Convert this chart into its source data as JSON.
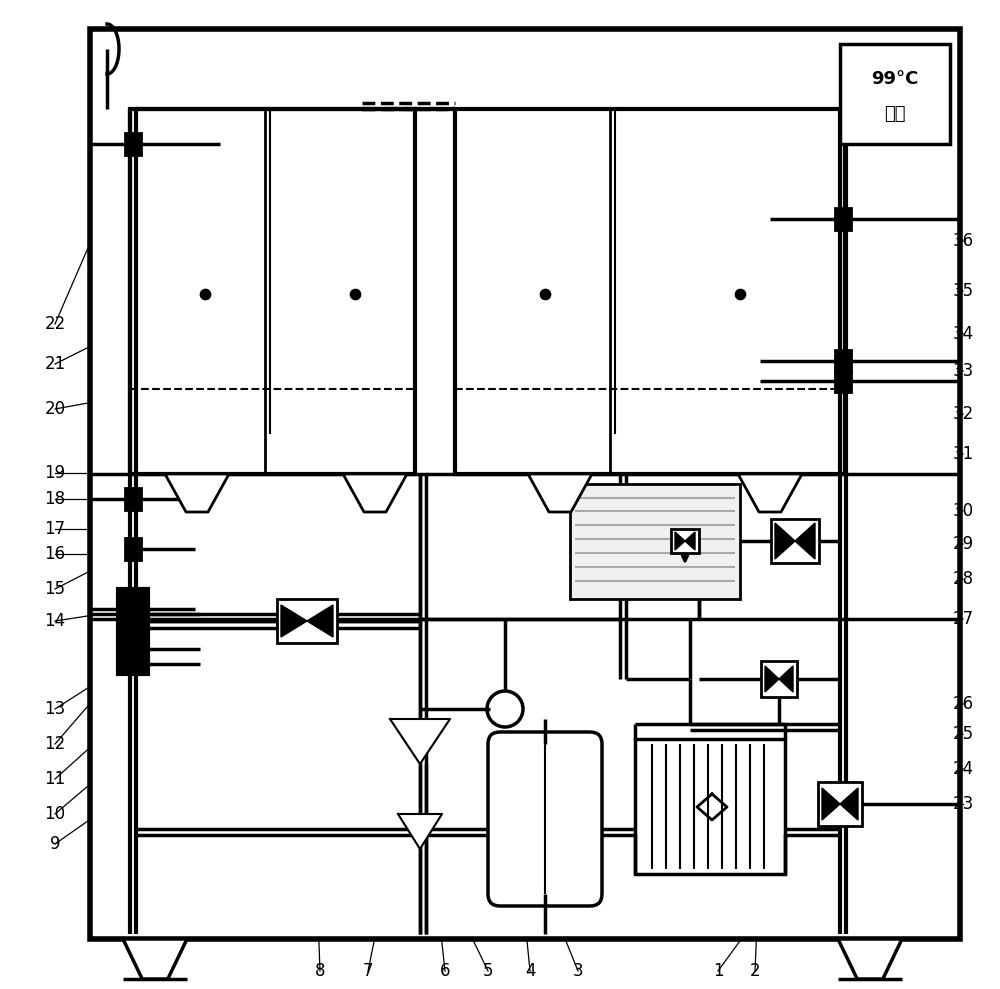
{
  "bg": "#ffffff",
  "fig_w": 10.0,
  "fig_h": 9.89,
  "dpi": 100,
  "display_line1": "99°C",
  "display_line2": "周四",
  "lw_outer": 4.0,
  "lw_tank": 3.0,
  "lw_pipe": 2.5,
  "lw_thin": 1.5,
  "lw_leader": 0.9
}
